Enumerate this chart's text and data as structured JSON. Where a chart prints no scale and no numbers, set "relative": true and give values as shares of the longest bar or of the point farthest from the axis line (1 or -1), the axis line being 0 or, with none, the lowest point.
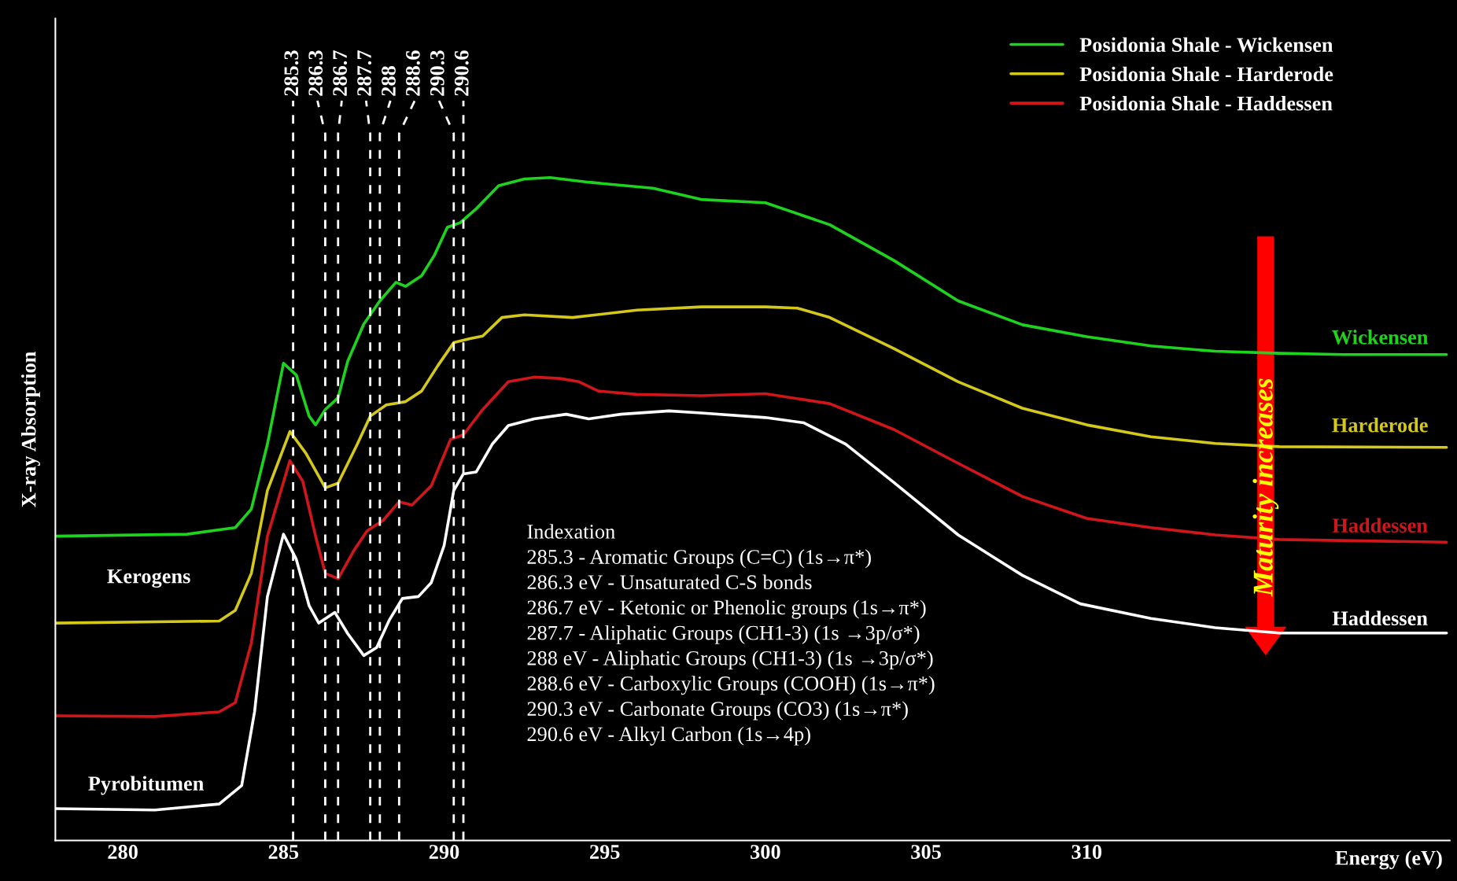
{
  "chart_data": {
    "type": "line",
    "relative": true,
    "xlabel": "Energy (eV)",
    "ylabel": "X-ray Absorption",
    "xlim": [
      277.9,
      321.3
    ],
    "xticks": [
      280,
      285,
      290,
      295,
      300,
      305,
      310
    ],
    "tick_labels": "x",
    "legend": "top right",
    "grid": false,
    "series": [
      {
        "name": "Posidonia Shale - Wickensen",
        "color": "#1ed31e",
        "x": [
          277.9,
          282,
          283.5,
          284,
          284.5,
          285,
          285.4,
          285.8,
          286.0,
          286.3,
          286.7,
          287,
          287.5,
          288,
          288.5,
          288.8,
          289.3,
          289.7,
          290.1,
          290.5,
          291,
          291.7,
          292.5,
          293.3,
          294.5,
          296.5,
          298,
          300,
          302,
          304,
          306,
          308,
          310,
          312,
          314,
          316,
          318,
          321.2
        ],
        "values": [
          0.459,
          0.462,
          0.472,
          0.5,
          0.598,
          0.72,
          0.702,
          0.64,
          0.627,
          0.65,
          0.668,
          0.723,
          0.779,
          0.814,
          0.842,
          0.836,
          0.852,
          0.883,
          0.925,
          0.932,
          0.953,
          0.988,
          0.998,
          1.0,
          0.993,
          0.984,
          0.967,
          0.962,
          0.929,
          0.875,
          0.814,
          0.778,
          0.76,
          0.746,
          0.738,
          0.735,
          0.733,
          0.733
        ]
      },
      {
        "name": "Posidonia Shale - Harderode",
        "color": "#d4c81a",
        "x": [
          277.9,
          283,
          283.5,
          284,
          284.5,
          285.2,
          285.7,
          286.3,
          286.7,
          287.3,
          287.7,
          288.2,
          288.8,
          289.3,
          289.8,
          290.3,
          290.8,
          291.2,
          291.8,
          292.5,
          294,
          296,
          298,
          300,
          301,
          302,
          304,
          306,
          308,
          310,
          312,
          314,
          316,
          321.2
        ],
        "values": [
          0.328,
          0.331,
          0.347,
          0.403,
          0.528,
          0.617,
          0.584,
          0.532,
          0.539,
          0.598,
          0.64,
          0.657,
          0.662,
          0.678,
          0.716,
          0.751,
          0.757,
          0.761,
          0.789,
          0.793,
          0.789,
          0.8,
          0.805,
          0.805,
          0.803,
          0.789,
          0.742,
          0.692,
          0.652,
          0.627,
          0.609,
          0.599,
          0.594,
          0.593
        ]
      },
      {
        "name": "Posidonia Shale - Haddessen",
        "color": "#d0161a",
        "x": [
          277.9,
          281,
          283,
          283.5,
          284,
          284.5,
          285.2,
          285.6,
          286,
          286.3,
          286.7,
          287.2,
          287.6,
          288.1,
          288.6,
          289,
          289.6,
          290.2,
          290.6,
          291.2,
          292,
          292.8,
          293.6,
          294.2,
          294.8,
          296,
          298,
          300,
          302,
          304,
          306,
          308,
          310,
          312,
          314,
          316,
          321.2
        ],
        "values": [
          0.188,
          0.187,
          0.194,
          0.208,
          0.298,
          0.459,
          0.573,
          0.542,
          0.459,
          0.403,
          0.395,
          0.438,
          0.467,
          0.483,
          0.511,
          0.506,
          0.535,
          0.605,
          0.612,
          0.65,
          0.692,
          0.699,
          0.697,
          0.692,
          0.678,
          0.673,
          0.671,
          0.674,
          0.659,
          0.62,
          0.569,
          0.519,
          0.486,
          0.472,
          0.461,
          0.454,
          0.45
        ]
      },
      {
        "color": "#ffffff",
        "x": [
          277.9,
          281,
          283,
          283.7,
          284.1,
          284.5,
          285,
          285.4,
          285.8,
          286.1,
          286.6,
          287,
          287.5,
          287.9,
          288.3,
          288.7,
          289.2,
          289.6,
          290.0,
          290.3,
          290.6,
          291,
          291.5,
          292,
          292.8,
          293.8,
          294.5,
          295.5,
          297,
          298,
          300,
          301.2,
          302.5,
          304,
          306,
          308,
          309.8,
          312,
          314,
          316,
          321.2
        ],
        "values": [
          0.048,
          0.046,
          0.055,
          0.083,
          0.194,
          0.368,
          0.462,
          0.424,
          0.354,
          0.328,
          0.344,
          0.312,
          0.279,
          0.291,
          0.333,
          0.365,
          0.368,
          0.389,
          0.445,
          0.528,
          0.553,
          0.556,
          0.598,
          0.626,
          0.636,
          0.643,
          0.636,
          0.643,
          0.648,
          0.645,
          0.638,
          0.63,
          0.598,
          0.54,
          0.461,
          0.4,
          0.357,
          0.335,
          0.321,
          0.313,
          0.313
        ]
      }
    ],
    "ref_lines": [
      {
        "axis": "x",
        "value": 285.3,
        "label": "285.3",
        "color": "#ffffff",
        "line_style": "dashed"
      },
      {
        "axis": "x",
        "value": 286.3,
        "label": "286.3",
        "color": "#ffffff",
        "line_style": "dashed"
      },
      {
        "axis": "x",
        "value": 286.7,
        "label": "286.7",
        "color": "#ffffff",
        "line_style": "dashed"
      },
      {
        "axis": "x",
        "value": 287.7,
        "label": "287.7",
        "color": "#ffffff",
        "line_style": "dashed"
      },
      {
        "axis": "x",
        "value": 288,
        "label": "288",
        "color": "#ffffff",
        "line_style": "dashed"
      },
      {
        "axis": "x",
        "value": 288.6,
        "label": "288.6",
        "color": "#ffffff",
        "line_style": "dashed"
      },
      {
        "axis": "x",
        "value": 290.3,
        "label": "290.3",
        "color": "#ffffff",
        "line_style": "dashed"
      },
      {
        "axis": "x",
        "value": 290.6,
        "label": "290.6",
        "color": "#ffffff",
        "line_style": "dashed"
      }
    ],
    "annotations": [
      "Indexation\n285.3 - Aromatic Groups (C=C) (1s→π*)\n286.3 eV - Unsaturated C-S bonds\n286.7 eV - Ketonic or Phenolic groups (1s→π*)\n287.7 - Aliphatic Groups (CH1-3) (1s →3p/σ*)\n288 eV - Aliphatic Groups (CH1-3) (1s →3p/σ*)\n288.6 eV - Carboxylic Groups (COOH) (1s→π*)\n290.3 eV - Carbonate Groups (CO3) (1s→π*)\n290.6 eV - Alkyl Carbon (1s→4p)",
      "Maturity increases",
      "Kerogens",
      "Pyrobitumen",
      "Wickensen",
      "Harderode",
      "Haddessen",
      "Haddessen"
    ]
  }
}
